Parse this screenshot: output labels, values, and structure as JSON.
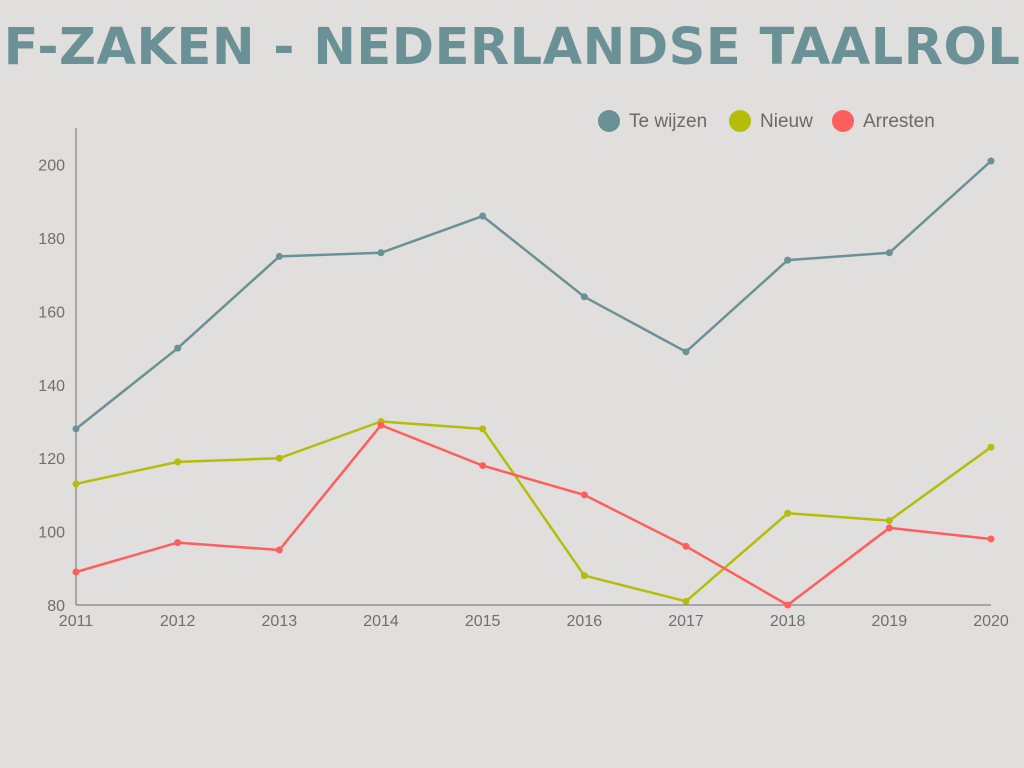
{
  "title": "F-ZAKEN - NEDERLANDSE TAALROL",
  "chart_data": {
    "type": "line",
    "x": [
      "2011",
      "2012",
      "2013",
      "2014",
      "2015",
      "2016",
      "2017",
      "2018",
      "2019",
      "2020"
    ],
    "ylim": [
      80,
      210
    ],
    "yticks": [
      80,
      100,
      120,
      140,
      160,
      180,
      200
    ],
    "grid": false,
    "legend_position": "top-right",
    "series": [
      {
        "name": "Te wijzen",
        "color": "#6a9196",
        "values": [
          128,
          150,
          175,
          176,
          186,
          164,
          149,
          174,
          176,
          201
        ]
      },
      {
        "name": "Nieuw",
        "color": "#b5bd0b",
        "values": [
          113,
          119,
          120,
          130,
          128,
          88,
          81,
          105,
          103,
          123
        ]
      },
      {
        "name": "Arresten",
        "color": "#ff5e5e",
        "values": [
          89,
          97,
          95,
          129,
          118,
          110,
          96,
          80,
          101,
          98
        ]
      }
    ]
  }
}
